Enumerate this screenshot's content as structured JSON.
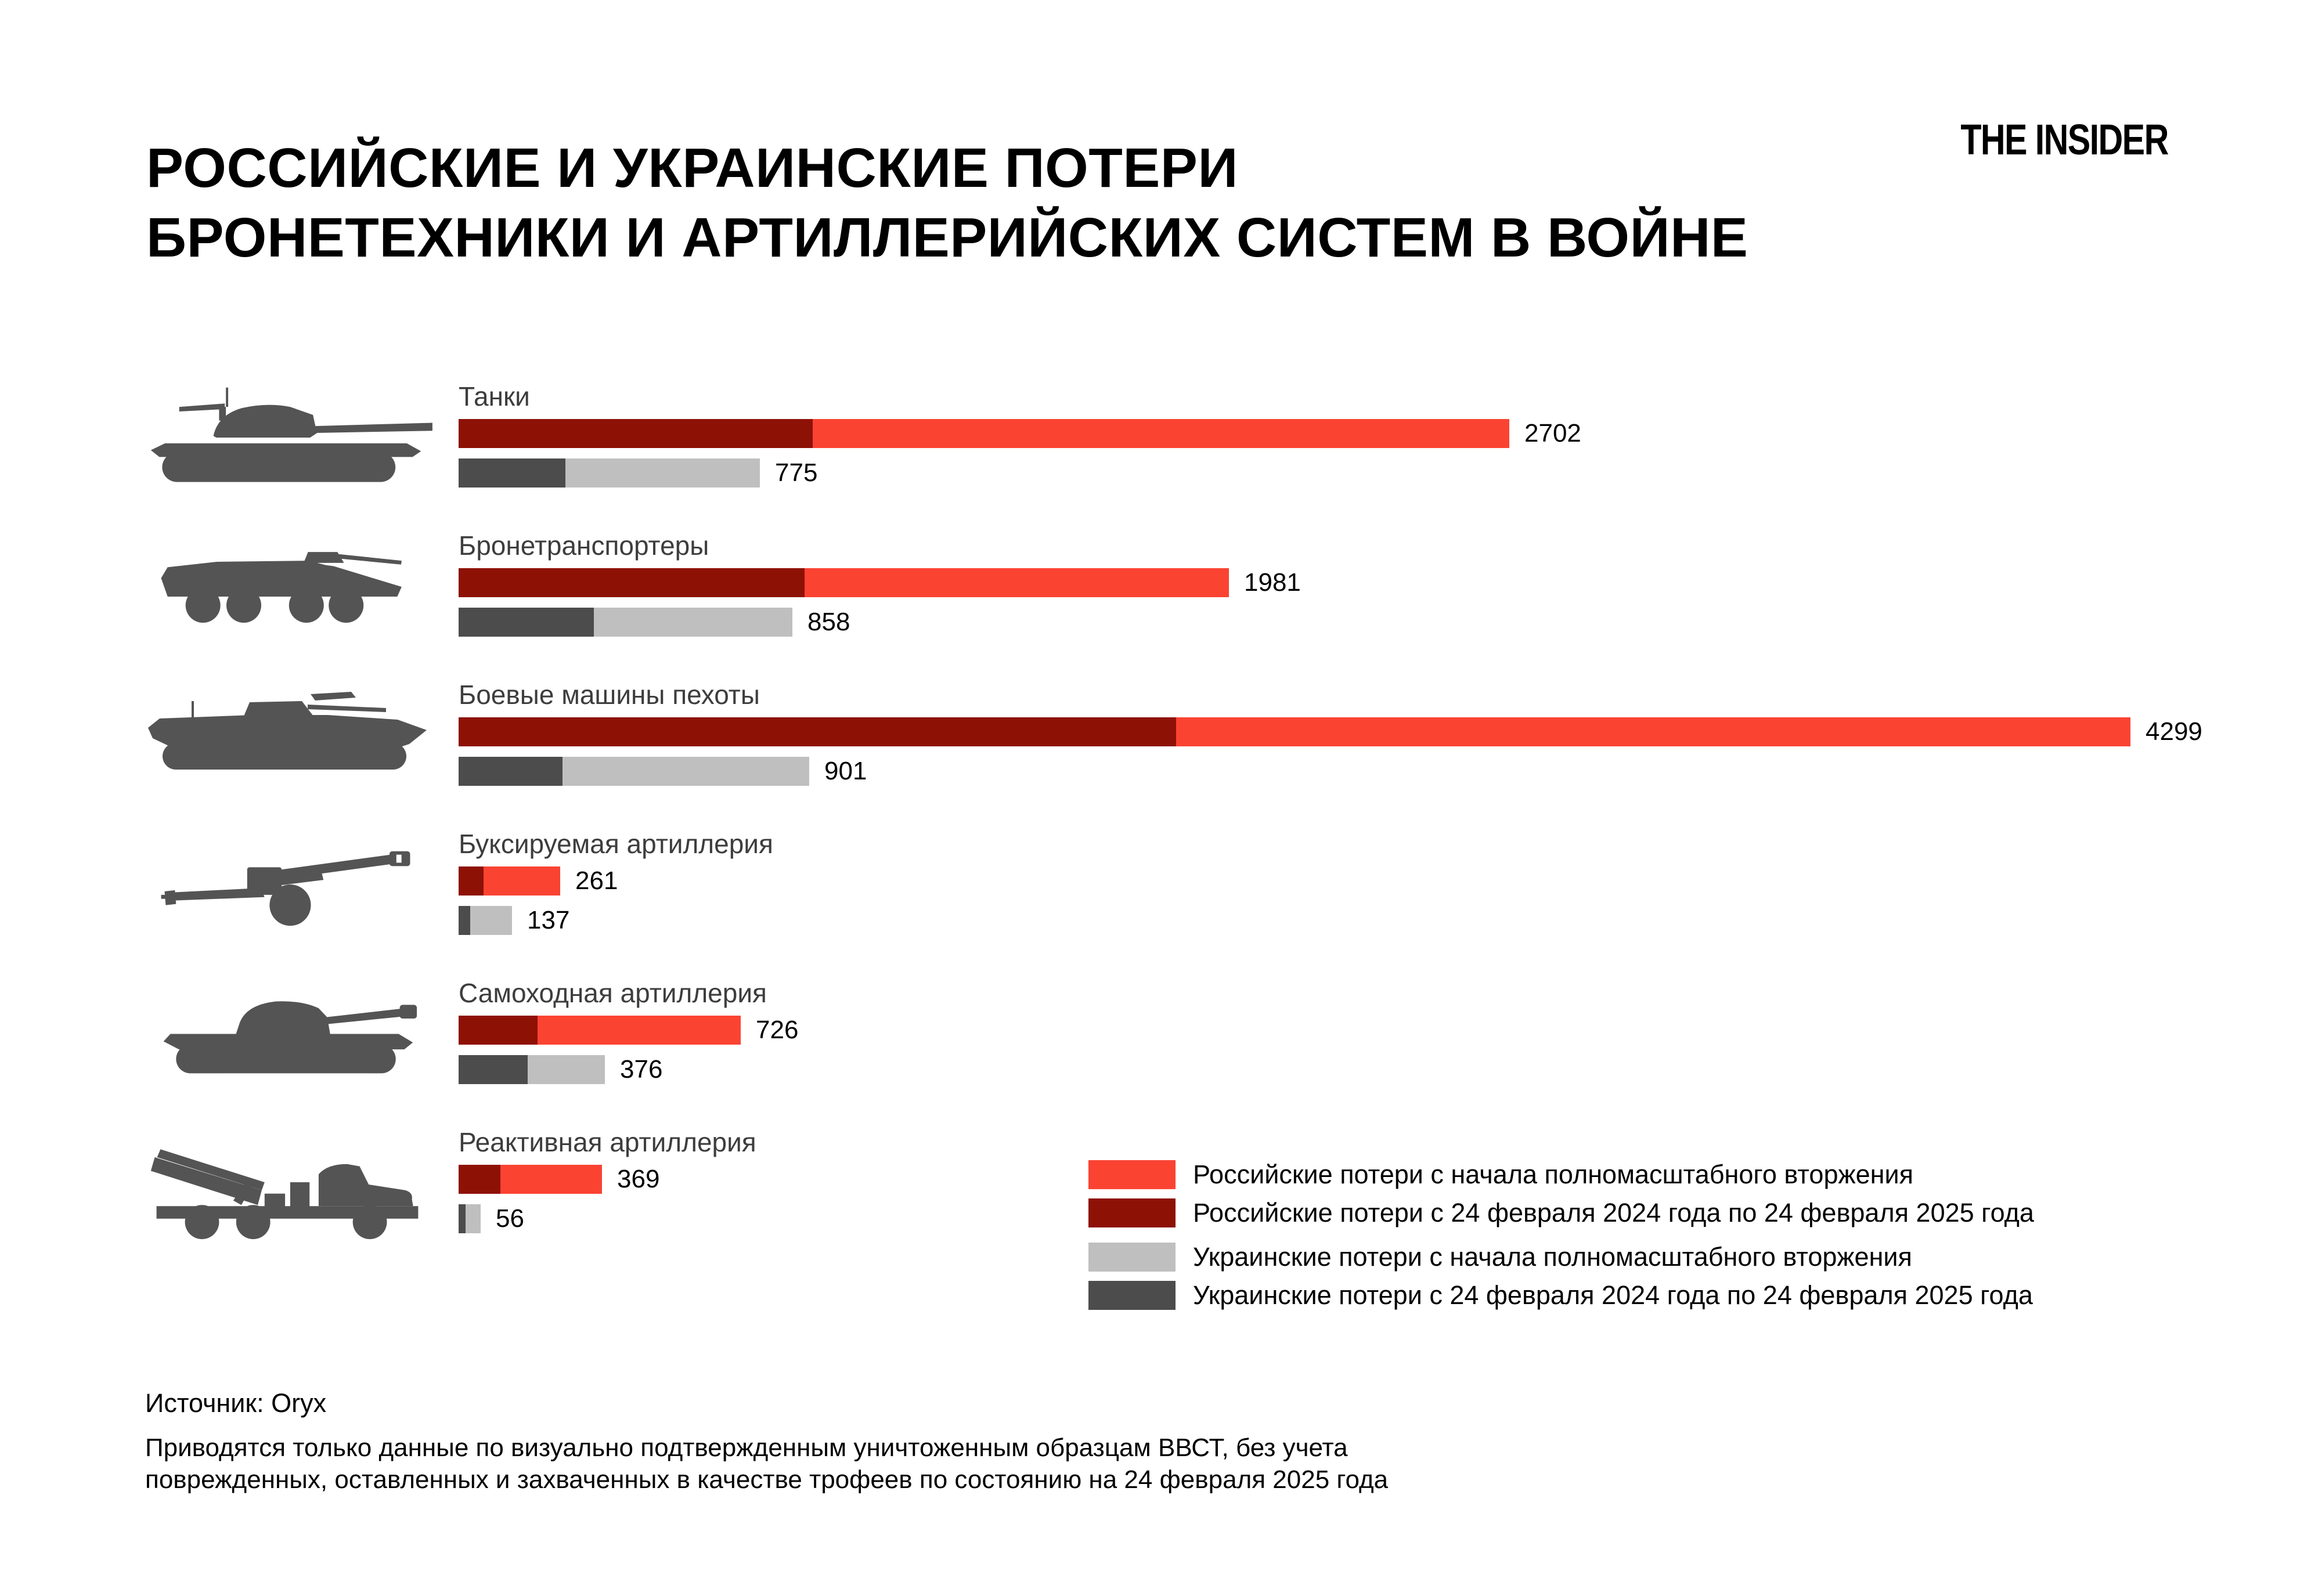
{
  "logo": {
    "text": "THE INSIDER"
  },
  "title": {
    "line1": "РОССИЙСКИЕ И УКРАИНСКИЕ ПОТЕРИ",
    "line2": "БРОНЕТЕХНИКИ И АРТИЛЛЕРИЙСКИХ СИСТЕМ В ВОЙНЕ"
  },
  "chart_data": {
    "type": "bar",
    "orientation": "horizontal",
    "xmax": 4299,
    "grid": false,
    "legend_position": "bottom-right",
    "colors": {
      "russian_total": "#FB4332",
      "russian_period": "#8E1106",
      "ukrainian_total": "#BFBFBF",
      "ukrainian_period": "#4C4C4C",
      "icon": "#545454"
    },
    "categories": [
      {
        "label": "Танки",
        "icon": "tank-icon",
        "russian_total": 2702,
        "russian_feb24_feb25_est": 910,
        "ukrainian_total": 775,
        "ukrainian_feb24_feb25_est": 275
      },
      {
        "label": "Бронетранспортеры",
        "icon": "apc-icon",
        "russian_total": 1981,
        "russian_feb24_feb25_est": 890,
        "ukrainian_total": 858,
        "ukrainian_feb24_feb25_est": 347
      },
      {
        "label": "Боевые машины пехоты",
        "icon": "ifv-icon",
        "russian_total": 4299,
        "russian_feb24_feb25_est": 1845,
        "ukrainian_total": 901,
        "ukrainian_feb24_feb25_est": 267
      },
      {
        "label": "Буксируемая артиллерия",
        "icon": "towed-artillery-icon",
        "russian_total": 261,
        "russian_feb24_feb25_est": 64,
        "ukrainian_total": 137,
        "ukrainian_feb24_feb25_est": 30
      },
      {
        "label": "Самоходная артиллерия",
        "icon": "self-propelled-artillery-icon",
        "russian_total": 726,
        "russian_feb24_feb25_est": 203,
        "ukrainian_total": 376,
        "ukrainian_feb24_feb25_est": 178
      },
      {
        "label": "Реактивная артиллерия",
        "icon": "mlrs-icon",
        "russian_total": 369,
        "russian_feb24_feb25_est": 108,
        "ukrainian_total": 56,
        "ukrainian_feb24_feb25_est": 18
      }
    ],
    "legend": [
      {
        "color": "#FB4332",
        "label": "Российские потери с начала полномасштабного вторжения"
      },
      {
        "color": "#8E1106",
        "label": "Российские потери с 24 февраля 2024 года по 24 февраля 2025 года"
      },
      {
        "color": "#BFBFBF",
        "label": "Украинские потери с начала полномасштабного вторжения"
      },
      {
        "color": "#4C4C4C",
        "label": "Украинские потери с 24 февраля 2024 года по 24 февраля 2025 года"
      }
    ]
  },
  "footer": {
    "source": "Источник: Oryx",
    "note_line1": "Приводятся только данные по визуально подтвержденным уничтоженным образцам ВВСТ, без учета",
    "note_line2": "поврежденных, оставленных и захваченных в качестве трофеев по состоянию на 24 февраля 2025 года"
  }
}
